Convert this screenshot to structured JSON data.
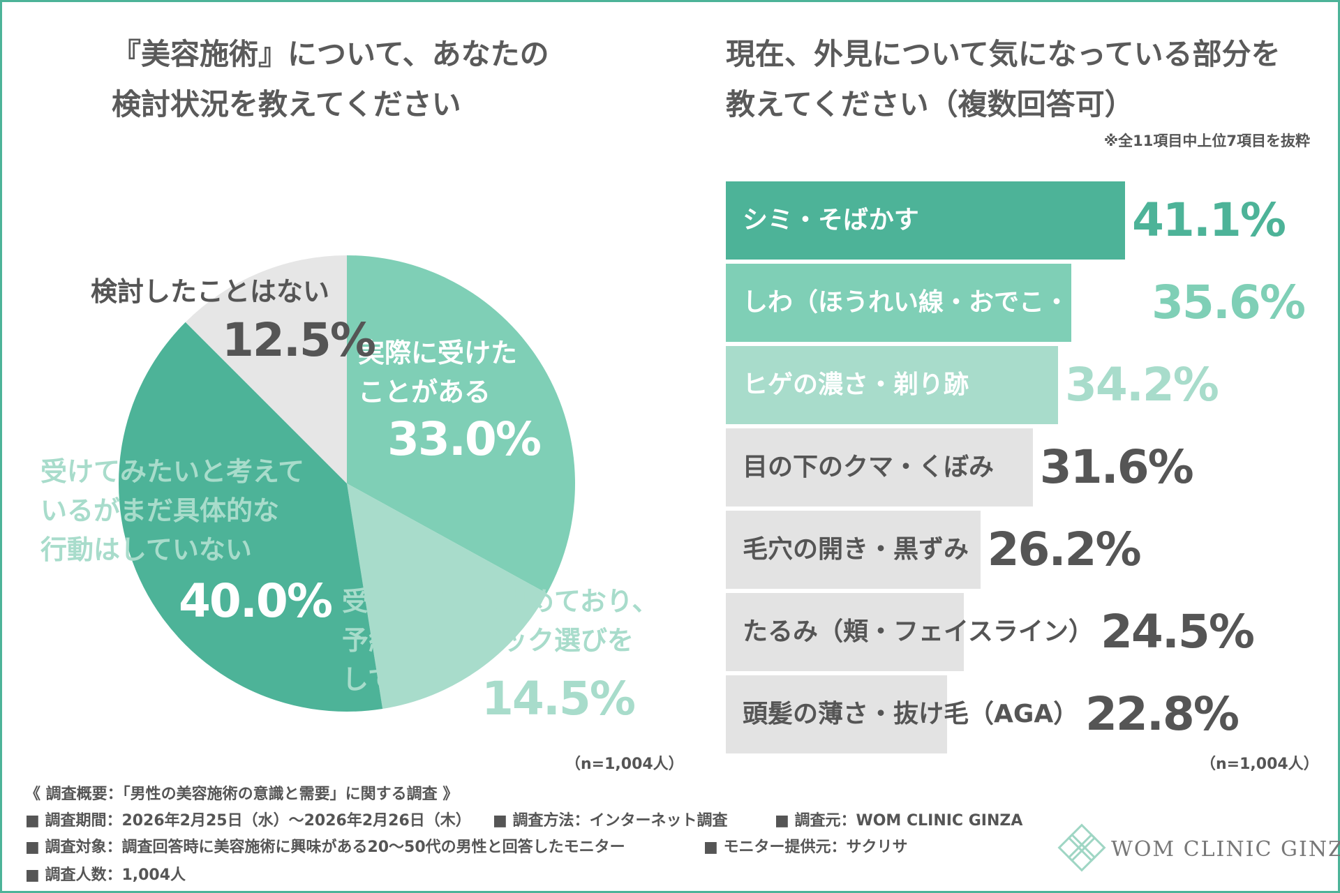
{
  "colors": {
    "dark_green": "#4db398",
    "mid_green": "#7fcfb6",
    "light_green": "#a8dccb",
    "gray_bar": "#e3e3e3",
    "gray_pie": "#e6e6e6",
    "text_dark": "#555555",
    "frame": "#4db398"
  },
  "left": {
    "title_line1": "『美容施術』について、あなたの",
    "title_line2": "検討状況を教えてください",
    "n_label": "（n=1,004人）"
  },
  "right": {
    "title_line1": "現在、外見について気になっている部分を",
    "title_line2": "教えてください（複数回答可）",
    "note": "※全11項目中上位7項目を抜粋",
    "n_label": "（n=1,004人）"
  },
  "chart_data": [
    {
      "type": "pie",
      "title": "『美容施術』について、あなたの検討状況を教えてください",
      "slices": [
        {
          "label": "実際に受けたことがある",
          "value": 33.0,
          "pct_text": "33.0%"
        },
        {
          "label": "受けることを決めており、予約／クリニック選びをしている",
          "value": 14.5,
          "pct_text": "14.5%"
        },
        {
          "label": "受けてみたいと考えているがまだ具体的な行動はしていない",
          "value": 40.0,
          "pct_text": "40.0%"
        },
        {
          "label": "検討したことはない",
          "value": 12.5,
          "pct_text": "12.5%"
        }
      ],
      "label_lines": {
        "s0": [
          "実際に受けた",
          "ことがある"
        ],
        "s1": [
          "受けることを決めており、",
          "予約／クリニック選びを",
          "している"
        ],
        "s2": [
          "受けてみたいと考えて",
          "いるがまだ具体的な",
          "行動はしていない"
        ],
        "s3": [
          "検討したことはない"
        ]
      },
      "n": "n=1,004人"
    },
    {
      "type": "bar",
      "orientation": "horizontal",
      "title": "現在、外見について気になっている部分を教えてください（複数回答可）",
      "categories": [
        "シミ・そばかす",
        "しわ（ほうれい線・おでこ・目尻）",
        "ヒゲの濃さ・剃り跡",
        "目の下のクマ・くぼみ",
        "毛穴の開き・黒ずみ",
        "たるみ（頬・フェイスライン）",
        "頭髪の薄さ・抜け毛（AGA）"
      ],
      "values": [
        41.1,
        35.6,
        34.2,
        31.6,
        26.2,
        24.5,
        22.8
      ],
      "value_texts": [
        "41.1%",
        "35.6%",
        "34.2%",
        "31.6%",
        "26.2%",
        "24.5%",
        "22.8%"
      ],
      "unit": "%",
      "n": "n=1,004人"
    }
  ],
  "footer": {
    "line1": "《 調査概要：「男性の美容施術の意識と需要」に関する調査 》",
    "line2_a": "■ 調査期間：2026年2月25日（水）〜2026年2月26日（木）",
    "line2_b": "■ 調査方法：インターネット調査",
    "line2_c": "■ 調査元：WOM CLINIC GINZA",
    "line3_a": "■ 調査対象：調査回答時に美容施術に興味がある20〜50代の男性と回答したモニター",
    "line3_b": "■ モニター提供元：サクリサ",
    "line4": "■ 調査人数：1,004人"
  },
  "brand": {
    "name": "WOM CLINIC GINZA",
    "logo_icon": "flower-diamond-icon"
  }
}
